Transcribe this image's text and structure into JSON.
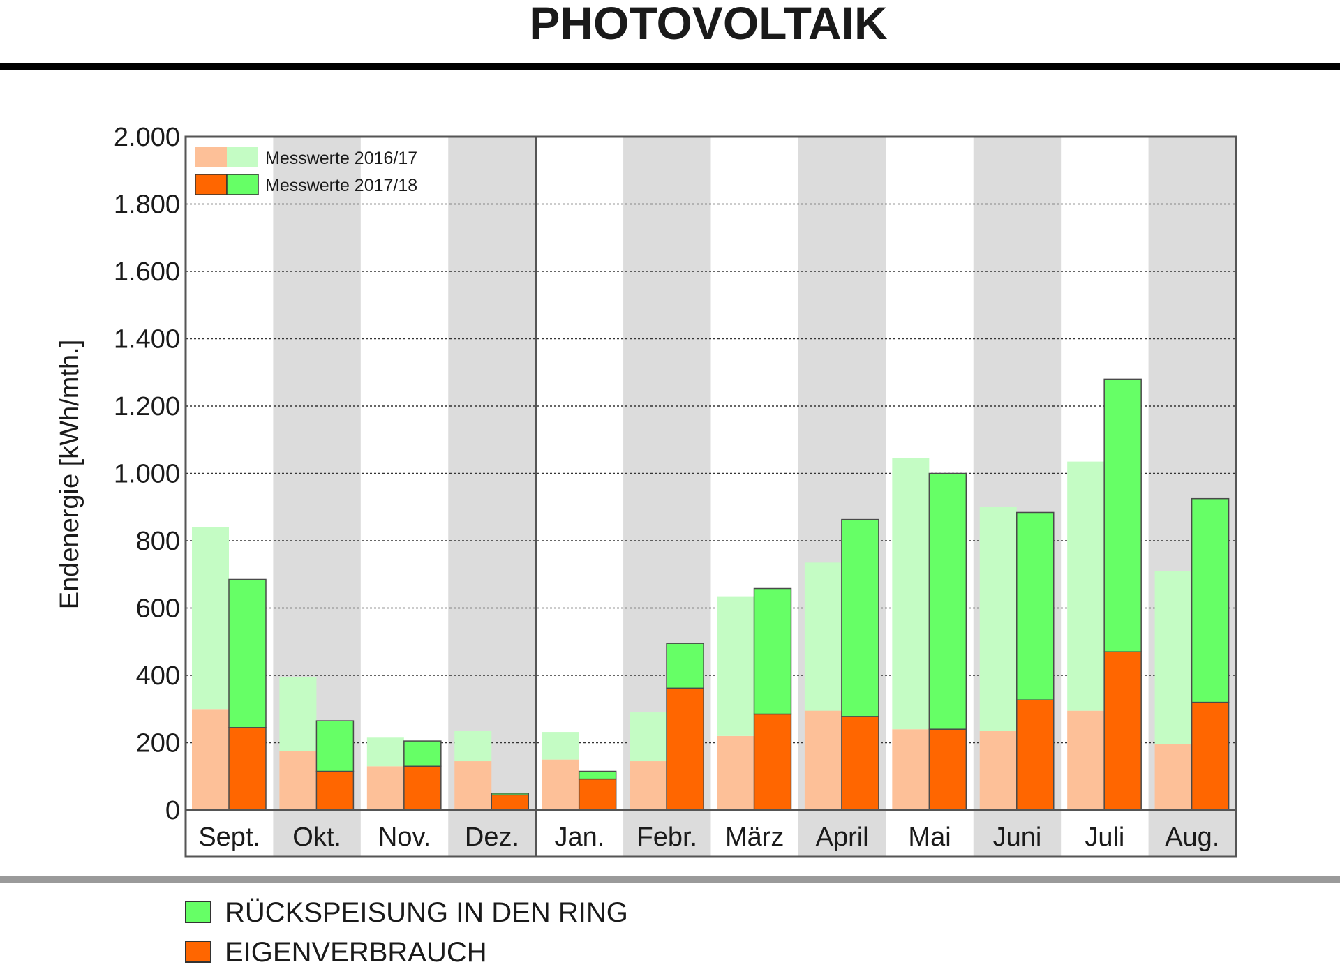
{
  "header": {
    "title": "PHOTOVOLTAIK"
  },
  "chart_data": {
    "type": "bar",
    "ylabel": "Endenergie [kWh/mth.]",
    "ylim": [
      0,
      2000
    ],
    "yticks": [
      0,
      200,
      400,
      600,
      800,
      1000,
      1200,
      1400,
      1600,
      1800,
      2000
    ],
    "ytick_labels": [
      "0",
      "200",
      "400",
      "600",
      "800",
      "1.000",
      "1.200",
      "1.400",
      "1.600",
      "1.800",
      "2.000"
    ],
    "categories": [
      "Sept.",
      "Okt.",
      "Nov.",
      "Dez.",
      "Jan.",
      "Febr.",
      "März",
      "April",
      "Mai",
      "Juni",
      "Juli",
      "Aug."
    ],
    "grid": "horizontal dotted",
    "stacked": true,
    "series": [
      {
        "name": "Messwerte 2016/17",
        "eigenverbrauch": [
          300,
          175,
          130,
          145,
          150,
          145,
          220,
          295,
          240,
          235,
          295,
          195
        ],
        "rueckspeisung": [
          540,
          220,
          85,
          90,
          82,
          145,
          415,
          440,
          805,
          665,
          740,
          515
        ]
      },
      {
        "name": "Messwerte 2017/18",
        "eigenverbrauch": [
          245,
          115,
          130,
          45,
          92,
          362,
          285,
          278,
          240,
          327,
          470,
          320
        ],
        "rueckspeisung": [
          440,
          150,
          75,
          5,
          23,
          133,
          373,
          585,
          760,
          557,
          810,
          605
        ]
      }
    ],
    "inner_legend": [
      "Messwerte 2016/17",
      "Messwerte 2017/18"
    ],
    "legend": [
      {
        "label": "RÜCKSPEISUNG IN DEN RING",
        "color": "#66ff66"
      },
      {
        "label": "EIGENVERBRAUCH",
        "color": "#ff6600"
      }
    ],
    "colors": {
      "eigen_2016": "#fdc098",
      "rueck_2016": "#c4fcc4",
      "eigen_2017": "#ff6600",
      "rueck_2017": "#66ff66",
      "band": "#dcdcdc"
    }
  }
}
